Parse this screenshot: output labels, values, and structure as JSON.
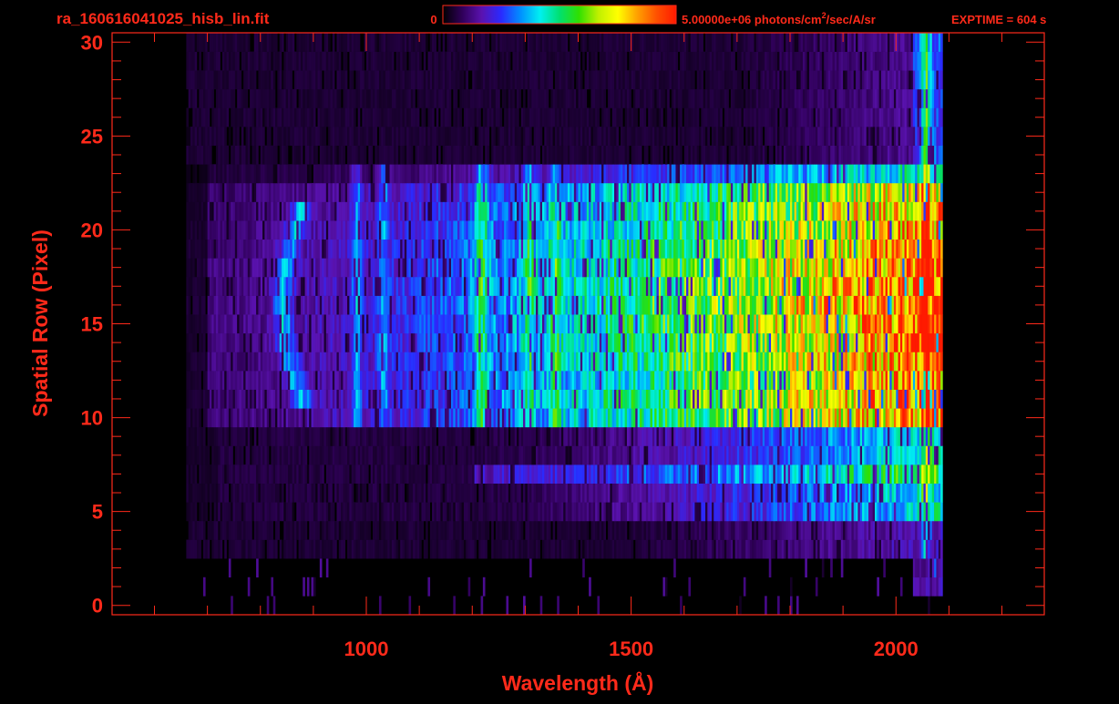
{
  "file_title": "ra_160616041025_hisb_lin.fit",
  "colorbar": {
    "min_label": "0",
    "max_label_pre": "5.00000e+06 photons/cm",
    "max_label_sup": "2",
    "max_label_post": "/sec/A/sr",
    "stops": [
      "#000000",
      "#30005a",
      "#5a12b0",
      "#2a2aff",
      "#0090ff",
      "#00f0f0",
      "#00e070",
      "#30e000",
      "#c0f000",
      "#ffff00",
      "#ffa000",
      "#ff5000",
      "#ff1a00"
    ]
  },
  "exptime_label": "EXPTIME = 604 s",
  "colors": {
    "axis": "#ff2a1a",
    "background": "#000000"
  },
  "chart_data": {
    "type": "heatmap",
    "xlabel": "Wavelength (Å)",
    "ylabel": "Spatial Row (Pixel)",
    "xlim": [
      520,
      2280
    ],
    "ylim": [
      -0.5,
      30.5
    ],
    "x_ticks": [
      1000,
      1500,
      2000
    ],
    "y_ticks": [
      0,
      5,
      10,
      15,
      20,
      25,
      30
    ],
    "x_minor_step": 100,
    "y_minor_step": 1,
    "z_unit": "photons/cm2/sec/A/sr",
    "zlim": [
      0,
      5000000
    ],
    "rows": 31,
    "wavelength_range": [
      670,
      2070
    ],
    "bright_rows": [
      10,
      23
    ],
    "emission_lines": [
      1216,
      1304,
      1356
    ],
    "continuum_peak_wavelength": 2000
  }
}
